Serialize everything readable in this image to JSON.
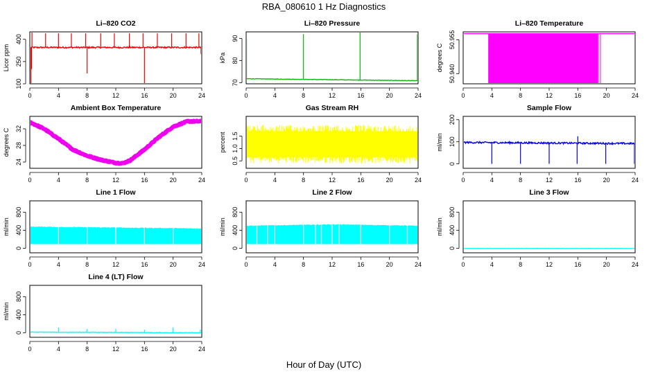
{
  "figure": {
    "title": "RBA_080610  1 Hz Diagnostics",
    "xlabel": "Hour of Day (UTC)"
  },
  "chart_data": [
    {
      "type": "line",
      "title": "Li–820 CO2",
      "ylabel": "Licor ppm",
      "color": "#ee0000",
      "xlim": [
        0,
        24
      ],
      "xticks": [
        0,
        4,
        8,
        12,
        16,
        20,
        24
      ],
      "ylim": [
        100,
        450
      ],
      "yticks": [
        100,
        250,
        400
      ],
      "ytick_labels": [
        "100",
        "250",
        "400"
      ],
      "series": [
        {
          "baseline": 345,
          "noise": 5,
          "spikes": [
            [
              0.15,
              100
            ],
            [
              0.25,
              200
            ],
            [
              0.3,
              460
            ],
            [
              2.2,
              440
            ],
            [
              4.0,
              440
            ],
            [
              5.8,
              440
            ],
            [
              7.8,
              440
            ],
            [
              8.0,
              170
            ],
            [
              9.9,
              440
            ],
            [
              11.8,
              440
            ],
            [
              13.9,
              440
            ],
            [
              15.8,
              440
            ],
            [
              16.0,
              100
            ],
            [
              17.8,
              440
            ],
            [
              19.8,
              440
            ],
            [
              21.8,
              440
            ],
            [
              23.6,
              440
            ],
            [
              23.9,
              300
            ]
          ]
        }
      ]
    },
    {
      "type": "line",
      "title": "Li–820 Pressure",
      "ylabel": "kPa",
      "color": "#00bb00",
      "xlim": [
        0,
        24
      ],
      "xticks": [
        0,
        4,
        8,
        12,
        16,
        20,
        24
      ],
      "ylim": [
        69.5,
        93
      ],
      "yticks": [
        70,
        80,
        90
      ],
      "ytick_labels": [
        "70",
        "80",
        "90"
      ],
      "series": [
        {
          "baseline_start": 71.8,
          "baseline_end": 70.9,
          "noise": 0.1,
          "spikes": [
            [
              0.05,
              90
            ],
            [
              8.0,
              92
            ],
            [
              15.9,
              93
            ],
            [
              23.9,
              92
            ]
          ]
        }
      ]
    },
    {
      "type": "line",
      "title": "Li–820 Temperature",
      "ylabel": "degrees C",
      "color": "#ff00ff",
      "xlim": [
        0,
        24
      ],
      "xticks": [
        0,
        4,
        8,
        12,
        16,
        20,
        24
      ],
      "ylim": [
        50.9355,
        50.9585
      ],
      "yticks": [
        50.94,
        50.955
      ],
      "ytick_labels": [
        "50.940",
        "50.955"
      ],
      "series": [
        {
          "high": 50.9577,
          "low": 50.9355,
          "dense_range": [
            3.5,
            18.8
          ],
          "sparse_range": [
            1.5,
            19.5
          ]
        }
      ]
    },
    {
      "type": "line",
      "title": "Ambient Box Temperature",
      "ylabel": "degrees C",
      "color": "#ee00ee",
      "xlim": [
        0,
        24
      ],
      "xticks": [
        0,
        4,
        8,
        12,
        16,
        20,
        24
      ],
      "ylim": [
        22.5,
        35
      ],
      "yticks": [
        24,
        28,
        32
      ],
      "ytick_labels": [
        "24",
        "28",
        "32"
      ],
      "series": [
        {
          "points": [
            [
              0,
              33.6
            ],
            [
              2,
              32.0
            ],
            [
              4,
              29.6
            ],
            [
              6,
              27.0
            ],
            [
              8,
              25.5
            ],
            [
              10,
              24.5
            ],
            [
              12,
              23.8
            ],
            [
              13,
              23.7
            ],
            [
              14,
              24.4
            ],
            [
              16,
              27.0
            ],
            [
              18,
              30.0
            ],
            [
              20,
              32.5
            ],
            [
              22,
              33.8
            ],
            [
              24,
              33.8
            ]
          ],
          "band": 0.7
        }
      ]
    },
    {
      "type": "line",
      "title": "Gas Stream RH",
      "ylabel": "percent",
      "color": "#ffff00",
      "xlim": [
        0,
        24
      ],
      "xticks": [
        0,
        4,
        8,
        12,
        16,
        20,
        24
      ],
      "ylim": [
        0.2,
        2.3
      ],
      "yticks": [
        0.5,
        1.0,
        1.5
      ],
      "ytick_labels": [
        "0.5",
        "1.0",
        "1.5"
      ],
      "series": [
        {
          "low": 0.5,
          "high": 1.85
        }
      ]
    },
    {
      "type": "line",
      "title": "Sample Flow",
      "ylabel": "ml/min",
      "color": "#0000ee",
      "xlim": [
        0,
        24
      ],
      "xticks": [
        0,
        4,
        8,
        12,
        16,
        20,
        24
      ],
      "ylim": [
        -20,
        215
      ],
      "yticks": [
        0,
        100,
        200
      ],
      "ytick_labels": [
        "0",
        "100",
        "200"
      ],
      "series": [
        {
          "baseline_start": 97,
          "baseline_end": 92,
          "noise": 4,
          "spikes": [
            [
              4.0,
              0
            ],
            [
              8.0,
              0
            ],
            [
              12.0,
              0
            ],
            [
              15.9,
              0
            ],
            [
              16.0,
              125
            ],
            [
              19.9,
              0
            ],
            [
              23.9,
              0
            ]
          ]
        }
      ]
    },
    {
      "type": "line",
      "title": "Line 1 Flow",
      "ylabel": "ml/min",
      "color": "#00ffff",
      "xlim": [
        0,
        24
      ],
      "xticks": [
        0,
        4,
        8,
        12,
        16,
        20,
        24
      ],
      "ylim": [
        -100,
        1050
      ],
      "yticks": [
        0,
        400,
        800
      ],
      "ytick_labels": [
        "0",
        "400",
        "800"
      ],
      "series": [
        {
          "low": 100,
          "high_start": 470,
          "high_end": 430,
          "gaps": [
            4.0,
            8.0,
            12.0,
            16.0,
            20.0
          ]
        }
      ]
    },
    {
      "type": "line",
      "title": "Line 2 Flow",
      "ylabel": "ml/min",
      "color": "#00ffff",
      "xlim": [
        0,
        24
      ],
      "xticks": [
        0,
        4,
        8,
        12,
        16,
        20,
        24
      ],
      "ylim": [
        -100,
        1050
      ],
      "yticks": [
        0,
        400,
        800
      ],
      "ytick_labels": [
        "0",
        "400",
        "800"
      ],
      "series": [
        {
          "low": 100,
          "high_start": 490,
          "high_mid": 520,
          "high_end": 490,
          "gaps": [
            1.5,
            3.0,
            4.0,
            8.0,
            9.7,
            10.5,
            12.0,
            13.0,
            16.0,
            20.0,
            22.5
          ]
        }
      ]
    },
    {
      "type": "line",
      "title": "Line 3 Flow",
      "ylabel": "ml/min",
      "color": "#00ffff",
      "xlim": [
        0,
        24
      ],
      "xticks": [
        0,
        4,
        8,
        12,
        16,
        20,
        24
      ],
      "ylim": [
        -100,
        1050
      ],
      "yticks": [
        0,
        400,
        800
      ],
      "ytick_labels": [
        "0",
        "400",
        "800"
      ],
      "series": [
        {
          "baseline_start": -5,
          "baseline_end": -5,
          "noise": 4,
          "spikes": []
        }
      ]
    },
    {
      "type": "line",
      "title": "Line 4 (LT) Flow",
      "ylabel": "ml/min",
      "color": "#00ffff",
      "xlim": [
        0,
        24
      ],
      "xticks": [
        0,
        4,
        8,
        12,
        16,
        20,
        24
      ],
      "ylim": [
        -100,
        1050
      ],
      "yticks": [
        0,
        400,
        800
      ],
      "ytick_labels": [
        "0",
        "400",
        "800"
      ],
      "series": [
        {
          "baseline_start": 15,
          "baseline_end": 0,
          "noise": 6,
          "spikes": [
            [
              4.0,
              120
            ],
            [
              8.0,
              85
            ],
            [
              12.0,
              90
            ],
            [
              16.0,
              70
            ],
            [
              20.0,
              120
            ],
            [
              23.8,
              70
            ]
          ]
        }
      ]
    }
  ]
}
